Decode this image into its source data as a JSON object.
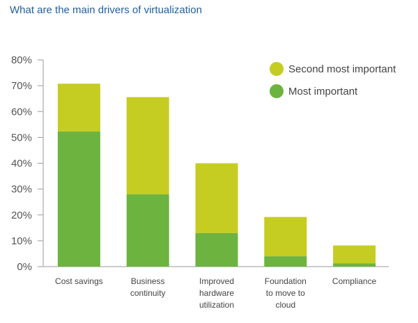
{
  "chart_data": {
    "type": "bar",
    "stacked": true,
    "title": "What are the main drivers of virtualization",
    "categories": [
      [
        "Cost savings"
      ],
      [
        "Business",
        "continuity"
      ],
      [
        "Improved",
        "hardware",
        "utilization"
      ],
      [
        "Foundation",
        "to move to",
        "cloud"
      ],
      [
        "Compliance"
      ]
    ],
    "series": [
      {
        "name": "Most important",
        "color": "#6db33f",
        "values": [
          52.3,
          28,
          13,
          4,
          1.3
        ]
      },
      {
        "name": "Second most important",
        "color": "#c5cd22",
        "values": [
          18.5,
          37.6,
          27,
          15.2,
          6.9
        ]
      }
    ],
    "legend_order": [
      "Second most important",
      "Most important"
    ],
    "legend_position": "top-right",
    "ylim": [
      0,
      80
    ],
    "y_ticks": [
      "0%",
      "10%",
      "20%",
      "30%",
      "40%",
      "50%",
      "60%",
      "70%",
      "80%"
    ],
    "grid": false
  }
}
